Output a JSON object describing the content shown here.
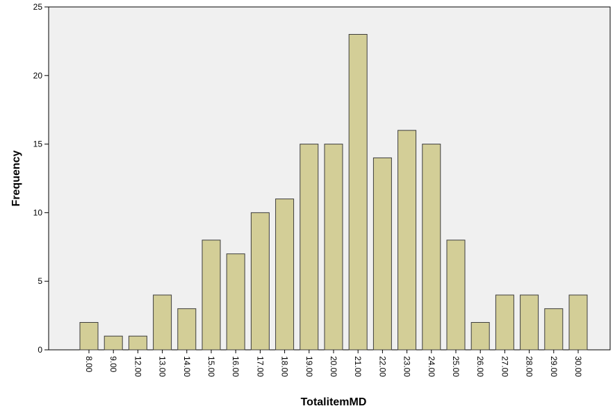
{
  "chart_data": {
    "type": "bar",
    "title": "",
    "xlabel": "TotalitemMD",
    "ylabel": "Frequency",
    "categories": [
      "8.00",
      "9.00",
      "12.00",
      "13.00",
      "14.00",
      "15.00",
      "16.00",
      "17.00",
      "18.00",
      "19.00",
      "20.00",
      "21.00",
      "22.00",
      "23.00",
      "24.00",
      "25.00",
      "26.00",
      "27.00",
      "28.00",
      "29.00",
      "30.00"
    ],
    "values": [
      2,
      1,
      1,
      4,
      3,
      8,
      7,
      10,
      11,
      15,
      15,
      23,
      14,
      16,
      15,
      8,
      2,
      4,
      4,
      3,
      4
    ],
    "ylim": [
      0,
      25
    ],
    "yticks": [
      0,
      5,
      10,
      15,
      20,
      25
    ],
    "grid": false,
    "legend": "none",
    "colors": {
      "plot_background": "#f0f0f0",
      "bar_fill": "#d3ce97",
      "bar_stroke": "#3c3c3c",
      "axis": "#000000"
    }
  }
}
